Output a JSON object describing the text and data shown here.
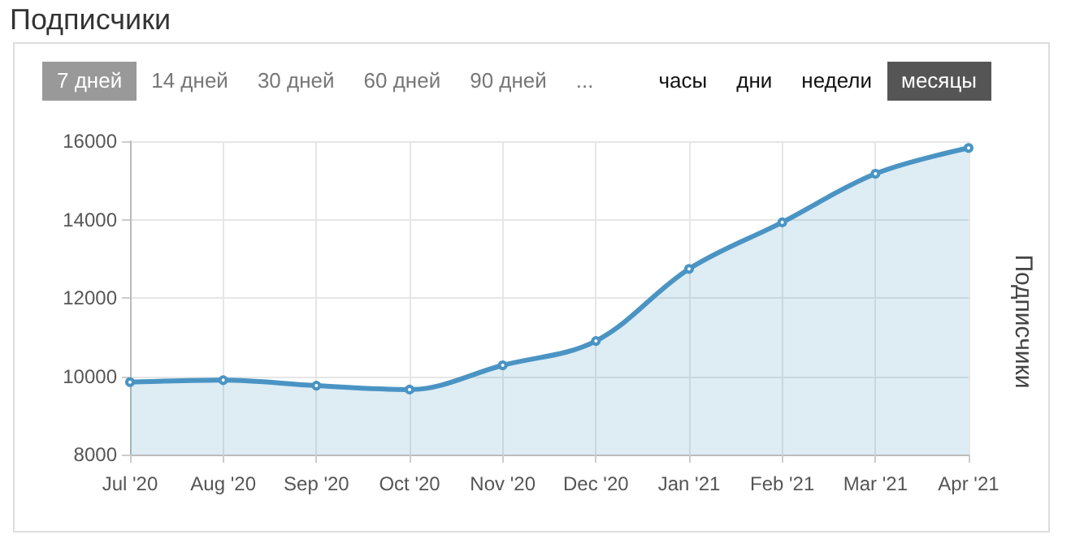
{
  "chart_data": {
    "type": "area",
    "title": "Подписчики",
    "ylabel": "Подписчики",
    "annotations": [
      "7 дней",
      "14 дней",
      "30 дней",
      "60 дней",
      "90 дней",
      "...",
      "часы",
      "дни",
      "недели",
      "месяцы"
    ],
    "categories": [
      "Jul '20",
      "Aug '20",
      "Sep '20",
      "Oct '20",
      "Nov '20",
      "Dec '20",
      "Jan '21",
      "Feb '21",
      "Mar '21",
      "Apr '21"
    ],
    "series": [
      {
        "color": "#4a94c4",
        "values": [
          9850,
          9900,
          9760,
          9660,
          10280,
          10900,
          12740,
          13930,
          15170,
          15830
        ]
      }
    ],
    "ylim": [
      8000,
      16000
    ],
    "yticks": [
      8000,
      10000,
      12000,
      14000,
      16000
    ],
    "grid": true,
    "marker": "circle"
  }
}
